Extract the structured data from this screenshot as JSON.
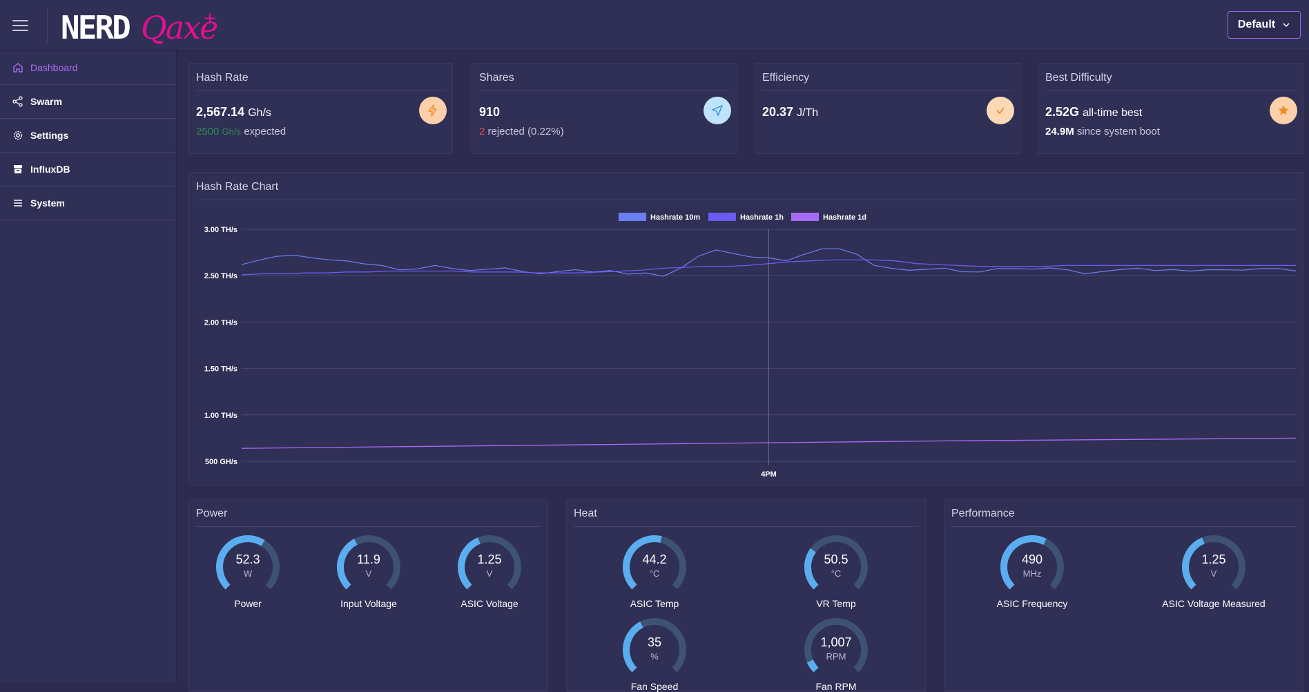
{
  "header": {
    "logo_text": "NERDQaxe+",
    "profile_label": "Default"
  },
  "sidebar": {
    "items": [
      {
        "label": "Dashboard",
        "icon": "home-icon",
        "active": true
      },
      {
        "label": "Swarm",
        "icon": "share-icon",
        "active": false
      },
      {
        "label": "Settings",
        "icon": "gear-icon",
        "active": false
      },
      {
        "label": "InfluxDB",
        "icon": "archive-icon",
        "active": false
      },
      {
        "label": "System",
        "icon": "list-icon",
        "active": false
      }
    ]
  },
  "stats": {
    "hashrate": {
      "title": "Hash Rate",
      "value": "2,567.14",
      "unit": "Gh/s",
      "expected_value": "2500",
      "expected_unit": "Gh/s",
      "expected_label": "expected",
      "icon": "bolt-icon",
      "icon_bg": "#fcd0a8",
      "icon_color": "#f08a24"
    },
    "shares": {
      "title": "Shares",
      "value": "910",
      "rejected_count": "2",
      "rejected_label": "rejected",
      "rejected_pct": "(0.22%)",
      "icon": "send-icon",
      "icon_bg": "#bfe3fb",
      "icon_color": "#2b8fd8"
    },
    "efficiency": {
      "title": "Efficiency",
      "value": "20.37",
      "unit": "J/Th",
      "icon": "check-icon",
      "icon_bg": "#fbd9b5",
      "icon_color": "#e9841f"
    },
    "difficulty": {
      "title": "Best Difficulty",
      "value": "2.52G",
      "value_label": "all-time best",
      "boot_value": "24.9M",
      "boot_label": "since system boot",
      "icon": "star-icon",
      "icon_bg": "#fcd0a8",
      "icon_color": "#f08a24"
    }
  },
  "chart": {
    "title": "Hash Rate Chart",
    "legend": [
      "Hashrate 10m",
      "Hashrate 1h",
      "Hashrate 1d"
    ],
    "y_ticks": [
      "3.00 TH/s",
      "2.50 TH/s",
      "2.00 TH/s",
      "1.50 TH/s",
      "1.00 TH/s",
      "500 GH/s"
    ],
    "x_tick": "4PM"
  },
  "chart_data": {
    "type": "line",
    "title": "Hash Rate Chart",
    "ylim": [
      0.5,
      3.0
    ],
    "yunit": "TH/s",
    "grid": true,
    "legend_position": "top",
    "x_ticks": [
      "4PM"
    ],
    "series": [
      {
        "name": "Hashrate 10m",
        "color": "#6a7ff0",
        "values": [
          2.62,
          2.66,
          2.7,
          2.72,
          2.7,
          2.68,
          2.66,
          2.62,
          2.6,
          2.56,
          2.58,
          2.62,
          2.58,
          2.55,
          2.56,
          2.58,
          2.55,
          2.53,
          2.55,
          2.56,
          2.53,
          2.55,
          2.52,
          2.54,
          2.5,
          2.58,
          2.7,
          2.77,
          2.74,
          2.71,
          2.7,
          2.66,
          2.72,
          2.78,
          2.79,
          2.74,
          2.62,
          2.58,
          2.55,
          2.56,
          2.58,
          2.55,
          2.55,
          2.58,
          2.57,
          2.56,
          2.58,
          2.57,
          2.53,
          2.55,
          2.56,
          2.57,
          2.55,
          2.57,
          2.56,
          2.57,
          2.56,
          2.55,
          2.57,
          2.58,
          2.56
        ]
      },
      {
        "name": "Hashrate 1h",
        "color": "#6a5cf0",
        "values": [
          2.51,
          2.52,
          2.52,
          2.53,
          2.53,
          2.54,
          2.54,
          2.55,
          2.55,
          2.55,
          2.55,
          2.54,
          2.54,
          2.54,
          2.53,
          2.53,
          2.53,
          2.54,
          2.55,
          2.56,
          2.58,
          2.59,
          2.6,
          2.6,
          2.61,
          2.63,
          2.65,
          2.66,
          2.67,
          2.67,
          2.67,
          2.66,
          2.63,
          2.62,
          2.61,
          2.6,
          2.6,
          2.6,
          2.6,
          2.61,
          2.61,
          2.61,
          2.61,
          2.61,
          2.61,
          2.61,
          2.61,
          2.61,
          2.61,
          2.61,
          2.61
        ]
      },
      {
        "name": "Hashrate 1d",
        "color": "#a86cf4",
        "values": [
          0.64,
          0.68,
          0.72,
          0.75
        ]
      }
    ]
  },
  "power": {
    "title": "Power",
    "gauges": [
      {
        "value": "52.3",
        "unit": "W",
        "label": "Power",
        "fraction": 0.62
      },
      {
        "value": "11.9",
        "unit": "V",
        "label": "Input Voltage",
        "fraction": 0.4
      },
      {
        "value": "1.25",
        "unit": "V",
        "label": "ASIC Voltage",
        "fraction": 0.42
      }
    ]
  },
  "heat": {
    "title": "Heat",
    "gauges": [
      {
        "value": "44.2",
        "unit": "°C",
        "label": "ASIC Temp",
        "fraction": 0.55
      },
      {
        "value": "50.5",
        "unit": "°C",
        "label": "VR Temp",
        "fraction": 0.3
      },
      {
        "value": "35",
        "unit": "%",
        "label": "Fan Speed",
        "fraction": 0.4
      },
      {
        "value": "1,007",
        "unit": "RPM",
        "label": "Fan RPM",
        "fraction": 0.08
      }
    ]
  },
  "performance": {
    "title": "Performance",
    "gauges": [
      {
        "value": "490",
        "unit": "MHz",
        "label": "ASIC Frequency",
        "fraction": 0.6
      },
      {
        "value": "1.25",
        "unit": "V",
        "label": "ASIC Voltage Measured",
        "fraction": 0.42
      }
    ]
  }
}
